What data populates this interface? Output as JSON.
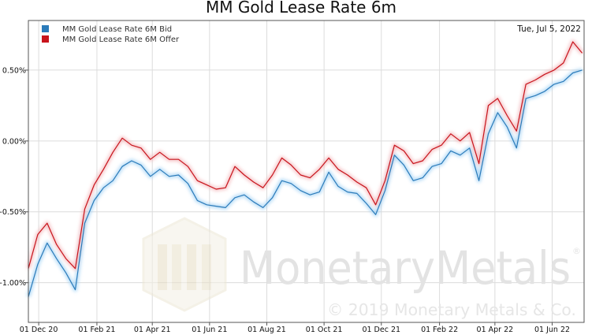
{
  "chart_data": {
    "type": "line",
    "title": "MM Gold Lease Rate 6m",
    "date_label": "Tue, Jul 5, 2022",
    "xlabel": "",
    "ylabel": "",
    "x_ticks": [
      "01 Dec 20",
      "01 Feb 21",
      "01 Apr 21",
      "01 Jun 21",
      "01 Aug 21",
      "01 Oct 21",
      "01 Dec 21",
      "01 Feb 22",
      "01 Apr 22",
      "01 Jun 22"
    ],
    "y_ticks": [
      "0.50%",
      "0.00%",
      "-0.50%",
      "-1.00%"
    ],
    "y_tick_values": [
      0.5,
      0.0,
      -0.5,
      -1.0
    ],
    "xlim": [
      "2020-11-20",
      "2022-07-05"
    ],
    "ylim": [
      -1.28,
      0.85
    ],
    "grid": true,
    "legend_position": "top-left",
    "colors": {
      "bid": "#2b7bba",
      "offer": "#c8141c"
    },
    "dates": [
      "2020-11-20",
      "2020-11-30",
      "2020-12-10",
      "2020-12-20",
      "2020-12-30",
      "2021-01-09",
      "2021-01-19",
      "2021-01-29",
      "2021-02-08",
      "2021-02-18",
      "2021-02-28",
      "2021-03-10",
      "2021-03-20",
      "2021-03-30",
      "2021-04-09",
      "2021-04-19",
      "2021-04-29",
      "2021-05-09",
      "2021-05-19",
      "2021-05-29",
      "2021-06-08",
      "2021-06-18",
      "2021-06-28",
      "2021-07-08",
      "2021-07-18",
      "2021-07-28",
      "2021-08-07",
      "2021-08-17",
      "2021-08-27",
      "2021-09-06",
      "2021-09-16",
      "2021-09-26",
      "2021-10-06",
      "2021-10-16",
      "2021-10-26",
      "2021-11-05",
      "2021-11-15",
      "2021-11-25",
      "2021-12-05",
      "2021-12-15",
      "2021-12-25",
      "2022-01-04",
      "2022-01-14",
      "2022-01-24",
      "2022-02-03",
      "2022-02-13",
      "2022-02-23",
      "2022-03-05",
      "2022-03-15",
      "2022-03-25",
      "2022-04-04",
      "2022-04-14",
      "2022-04-24",
      "2022-05-04",
      "2022-05-14",
      "2022-05-24",
      "2022-06-03",
      "2022-06-13",
      "2022-06-23",
      "2022-07-03"
    ],
    "series": [
      {
        "name": "MM Gold Lease Rate 6M Bid",
        "values": [
          -1.1,
          -0.87,
          -0.72,
          -0.83,
          -0.93,
          -1.05,
          -0.58,
          -0.42,
          -0.33,
          -0.28,
          -0.18,
          -0.14,
          -0.17,
          -0.25,
          -0.2,
          -0.25,
          -0.24,
          -0.3,
          -0.42,
          -0.45,
          -0.46,
          -0.47,
          -0.4,
          -0.38,
          -0.43,
          -0.47,
          -0.4,
          -0.28,
          -0.3,
          -0.35,
          -0.38,
          -0.36,
          -0.22,
          -0.32,
          -0.36,
          -0.37,
          -0.44,
          -0.52,
          -0.35,
          -0.1,
          -0.17,
          -0.28,
          -0.26,
          -0.18,
          -0.16,
          -0.07,
          -0.1,
          -0.05,
          -0.28,
          0.05,
          0.2,
          0.1,
          -0.05,
          0.3,
          0.32,
          0.35,
          0.4,
          0.42,
          0.48,
          0.5
        ]
      },
      {
        "name": "MM Gold Lease Rate 6M Offer",
        "values": [
          -0.9,
          -0.66,
          -0.58,
          -0.73,
          -0.83,
          -0.9,
          -0.48,
          -0.31,
          -0.2,
          -0.08,
          0.02,
          -0.03,
          -0.05,
          -0.13,
          -0.08,
          -0.13,
          -0.13,
          -0.18,
          -0.28,
          -0.31,
          -0.34,
          -0.33,
          -0.18,
          -0.24,
          -0.29,
          -0.33,
          -0.24,
          -0.12,
          -0.17,
          -0.24,
          -0.26,
          -0.2,
          -0.12,
          -0.2,
          -0.24,
          -0.29,
          -0.33,
          -0.45,
          -0.28,
          -0.03,
          -0.07,
          -0.16,
          -0.14,
          -0.06,
          -0.03,
          0.05,
          0.0,
          0.06,
          -0.16,
          0.25,
          0.3,
          0.18,
          0.07,
          0.4,
          0.43,
          0.47,
          0.5,
          0.55,
          0.7,
          0.62
        ]
      }
    ]
  },
  "watermark": {
    "brand": "MonetaryMetals",
    "registered": "®",
    "copyright": "© 2019 Monetary Metals & Co.",
    "logo": "monetary-metals-logo-icon"
  }
}
